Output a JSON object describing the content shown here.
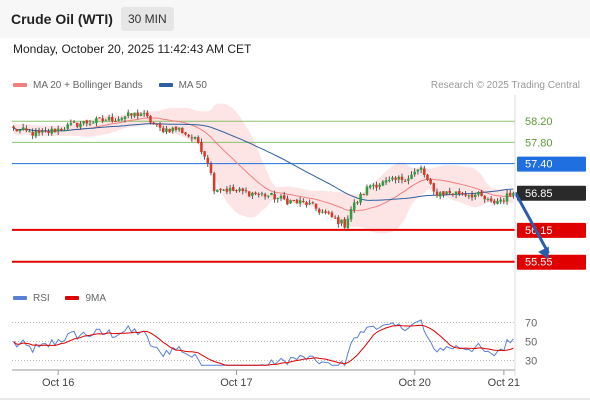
{
  "header": {
    "instrument": "Crude Oil (WTI)",
    "timeframe": "30 MIN"
  },
  "datetime": "Monday, October 20, 2025 11:42:43 AM CET",
  "legend": {
    "items": [
      {
        "label": "MA 20 + Bollinger Bands",
        "color": "#f08080"
      },
      {
        "label": "MA 50",
        "color": "#2f5f9e"
      }
    ],
    "credit": "Research © 2025 Trading Central"
  },
  "rsi_legend": {
    "items": [
      {
        "label": "RSI",
        "color": "#5b7fd6"
      },
      {
        "label": "9MA",
        "color": "#dd0000"
      }
    ]
  },
  "chart_data": {
    "type": "candlestick",
    "grid": false,
    "legend_position": "top-left",
    "ylim": [
      55.3,
      58.6
    ],
    "x_ticks": [
      "Oct 16",
      "Oct 17",
      "Oct 20",
      "Oct 21"
    ],
    "x_tick_index": [
      14,
      70,
      126,
      154
    ],
    "n_bars": 158,
    "last_price": 56.85,
    "levels": [
      {
        "label": "58.20",
        "value": 58.2,
        "kind": "resistance-light",
        "color": "#8dc26f"
      },
      {
        "label": "57.80",
        "value": 57.8,
        "kind": "resistance-light",
        "color": "#8dc26f"
      },
      {
        "label": "57.40",
        "value": 57.4,
        "kind": "pivot",
        "color": "#1f6fe0"
      },
      {
        "label": "56.85",
        "value": 56.85,
        "kind": "last",
        "color": "#333333"
      },
      {
        "label": "56.15",
        "value": 56.15,
        "kind": "support",
        "color": "#e00000"
      },
      {
        "label": "55.55",
        "value": 55.55,
        "kind": "support",
        "color": "#e00000"
      }
    ],
    "forecast_arrow": {
      "from": [
        157,
        56.85
      ],
      "to": [
        168,
        55.6
      ],
      "color": "#2a5cad"
    },
    "anchors": [
      [
        0,
        58.05
      ],
      [
        8,
        57.95
      ],
      [
        20,
        58.15
      ],
      [
        32,
        58.25
      ],
      [
        40,
        58.35
      ],
      [
        46,
        58.05
      ],
      [
        52,
        58.05
      ],
      [
        58,
        57.8
      ],
      [
        61,
        57.45
      ],
      [
        63,
        56.95
      ],
      [
        68,
        56.9
      ],
      [
        74,
        56.85
      ],
      [
        80,
        56.8
      ],
      [
        86,
        56.7
      ],
      [
        92,
        56.65
      ],
      [
        98,
        56.45
      ],
      [
        104,
        56.25
      ],
      [
        106,
        56.55
      ],
      [
        112,
        57.0
      ],
      [
        118,
        57.05
      ],
      [
        124,
        57.15
      ],
      [
        128,
        57.3
      ],
      [
        132,
        56.85
      ],
      [
        140,
        56.85
      ],
      [
        146,
        56.8
      ],
      [
        150,
        56.65
      ],
      [
        154,
        56.75
      ],
      [
        157,
        56.85
      ]
    ],
    "rsi": {
      "ylim": [
        20,
        80
      ],
      "ticks": [
        {
          "label": "70",
          "value": 70
        },
        {
          "label": "50",
          "value": 50
        },
        {
          "label": "30",
          "value": 30
        }
      ]
    }
  }
}
